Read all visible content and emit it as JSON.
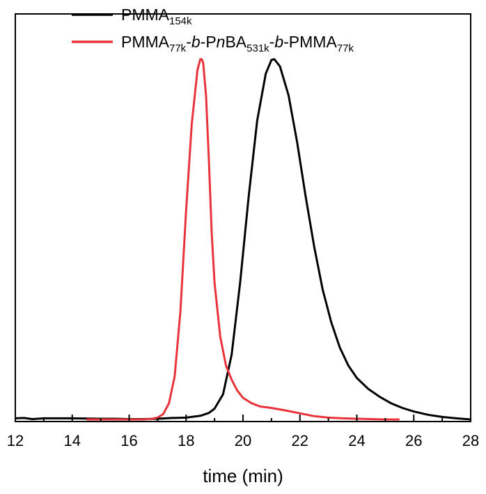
{
  "chart_data": {
    "type": "line",
    "title": "",
    "xlabel": "time (min)",
    "ylabel": "",
    "xlim": [
      12,
      28
    ],
    "ylim": [
      0,
      1.0
    ],
    "x_ticks": [
      "12",
      "14",
      "16",
      "18",
      "20",
      "22",
      "24",
      "26",
      "28"
    ],
    "y_axis_visible": false,
    "grid": false,
    "legend": "top-left",
    "series": [
      {
        "name": "PMMA154k",
        "legend_parts": [
          {
            "text": "PMMA",
            "style": "normal"
          },
          {
            "text": "154k",
            "style": "sub"
          }
        ],
        "color": "#000000",
        "x": [
          12.0,
          12.3,
          12.6,
          13.0,
          14.0,
          15.0,
          15.5,
          16.0,
          16.5,
          17.0,
          17.5,
          18.0,
          18.5,
          18.8,
          19.0,
          19.3,
          19.6,
          19.9,
          20.2,
          20.5,
          20.8,
          21.0,
          21.1,
          21.3,
          21.6,
          21.9,
          22.2,
          22.5,
          22.8,
          23.1,
          23.4,
          23.7,
          24.0,
          24.4,
          24.8,
          25.2,
          25.6,
          26.0,
          26.5,
          27.0,
          27.5,
          28.0
        ],
        "y": [
          0.003,
          0.004,
          0.001,
          0.003,
          0.003,
          0.002,
          0.002,
          0.001,
          0.001,
          0.002,
          0.004,
          0.005,
          0.01,
          0.018,
          0.03,
          0.07,
          0.18,
          0.38,
          0.62,
          0.83,
          0.96,
          0.998,
          1.0,
          0.98,
          0.9,
          0.77,
          0.62,
          0.48,
          0.36,
          0.27,
          0.2,
          0.15,
          0.115,
          0.085,
          0.063,
          0.045,
          0.032,
          0.022,
          0.013,
          0.007,
          0.003,
          0.0
        ]
      },
      {
        "name": "PMMA77k-b-PnBA531k-b-PMMA77k",
        "legend_parts": [
          {
            "text": "PMMA",
            "style": "normal"
          },
          {
            "text": "77k",
            "style": "sub"
          },
          {
            "text": "-",
            "style": "normal"
          },
          {
            "text": "b",
            "style": "italic"
          },
          {
            "text": "-P",
            "style": "normal"
          },
          {
            "text": "n",
            "style": "italic"
          },
          {
            "text": "BA",
            "style": "normal"
          },
          {
            "text": "531k",
            "style": "sub"
          },
          {
            "text": "-",
            "style": "normal"
          },
          {
            "text": "b",
            "style": "italic"
          },
          {
            "text": "-PMMA",
            "style": "normal"
          },
          {
            "text": "77k",
            "style": "sub"
          }
        ],
        "color": "#e8333a",
        "x": [
          14.5,
          15.5,
          16.0,
          16.5,
          16.8,
          17.0,
          17.2,
          17.4,
          17.6,
          17.8,
          18.0,
          18.2,
          18.4,
          18.5,
          18.55,
          18.6,
          18.7,
          18.8,
          18.9,
          19.0,
          19.2,
          19.4,
          19.6,
          19.8,
          20.0,
          20.3,
          20.6,
          21.0,
          21.5,
          22.0,
          22.5,
          23.0,
          23.5,
          24.0,
          24.5,
          25.0,
          25.5
        ],
        "y": [
          0.0,
          0.0,
          0.0,
          0.0,
          0.002,
          0.005,
          0.015,
          0.045,
          0.12,
          0.3,
          0.58,
          0.82,
          0.97,
          1.0,
          1.0,
          0.99,
          0.9,
          0.72,
          0.52,
          0.38,
          0.23,
          0.15,
          0.11,
          0.08,
          0.06,
          0.045,
          0.036,
          0.032,
          0.025,
          0.017,
          0.009,
          0.005,
          0.003,
          0.002,
          0.001,
          0.0,
          0.0
        ]
      }
    ]
  }
}
